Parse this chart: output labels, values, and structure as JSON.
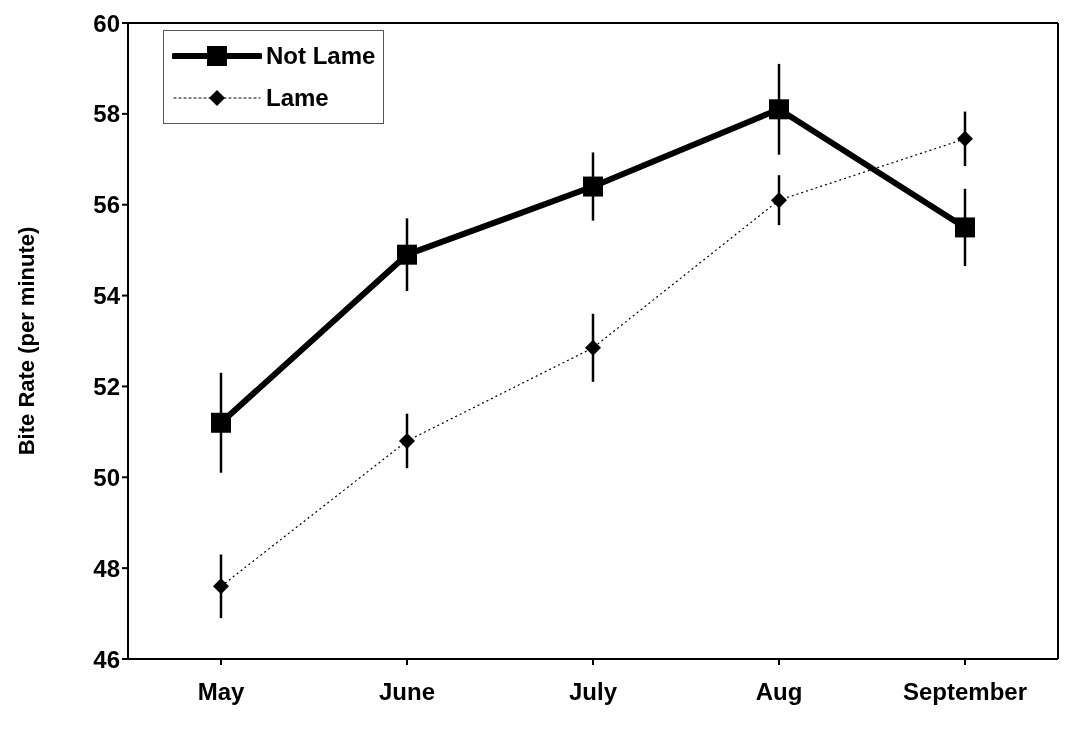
{
  "chart_data": {
    "type": "line",
    "ylabel": "Bite Rate (per minute)",
    "categories": [
      "May",
      "June",
      "July",
      "Aug",
      "September"
    ],
    "series": [
      {
        "name": "Not Lame",
        "color": "#000000",
        "marker": "square",
        "line_style": "solid",
        "values": [
          51.2,
          54.9,
          56.4,
          58.1,
          55.5
        ],
        "errors": [
          1.1,
          0.8,
          0.75,
          1.0,
          0.85
        ]
      },
      {
        "name": "Lame",
        "color": "#000000",
        "marker": "diamond",
        "line_style": "dotted",
        "values": [
          47.6,
          50.8,
          52.85,
          56.1,
          57.45
        ],
        "errors": [
          0.7,
          0.6,
          0.75,
          0.55,
          0.6
        ]
      }
    ],
    "ylim": [
      46,
      60
    ],
    "yticks": [
      46,
      48,
      50,
      52,
      54,
      56,
      58,
      60
    ],
    "grid": false,
    "legend": "top left"
  }
}
